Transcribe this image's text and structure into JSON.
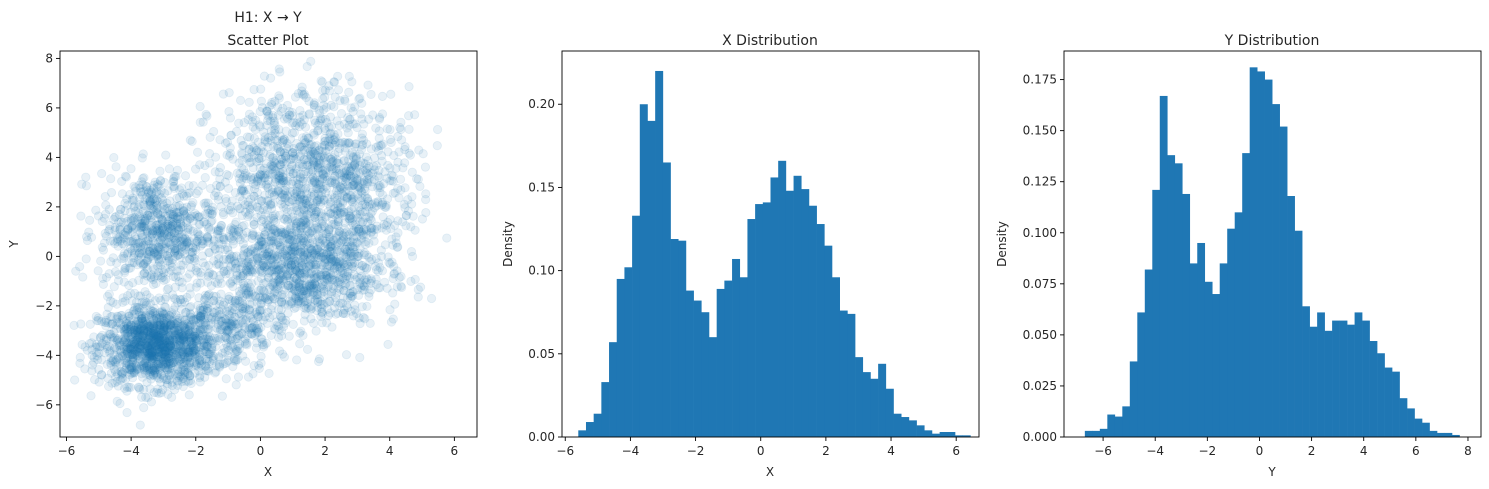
{
  "chart_data": [
    {
      "type": "scatter",
      "title": "H1: X → Y",
      "subtitle": "Scatter Plot",
      "xlabel": "X",
      "ylabel": "Y",
      "xlim": [
        -6.2,
        6.7
      ],
      "ylim": [
        -7.3,
        8.3
      ],
      "xticks": [
        -6,
        -4,
        -2,
        0,
        2,
        4,
        6
      ],
      "yticks": [
        -6,
        -4,
        -2,
        0,
        2,
        4,
        6,
        8
      ],
      "grid": false,
      "color": "#1f77b4",
      "alpha": 0.1,
      "clusters": [
        {
          "center": [
            -3.2,
            -3.6
          ],
          "spread": [
            0.9,
            0.8
          ],
          "count": 1300
        },
        {
          "center": [
            -3.2,
            1.0
          ],
          "spread": [
            0.9,
            1.2
          ],
          "count": 700
        },
        {
          "center": [
            1.0,
            -0.5
          ],
          "spread": [
            1.3,
            1.2
          ],
          "count": 1000
        },
        {
          "center": [
            1.3,
            3.5
          ],
          "spread": [
            1.4,
            1.6
          ],
          "count": 900
        },
        {
          "center": [
            -1.0,
            -3.0
          ],
          "spread": [
            0.8,
            0.8
          ],
          "count": 250
        },
        {
          "center": [
            3.0,
            2.0
          ],
          "spread": [
            1.0,
            1.8
          ],
          "count": 350
        }
      ]
    },
    {
      "type": "bar",
      "title": "X Distribution",
      "xlabel": "X",
      "ylabel": "Density",
      "xlim": [
        -6.1,
        6.7
      ],
      "ylim": [
        0,
        0.232
      ],
      "xticks": [
        -6,
        -4,
        -2,
        0,
        2,
        4,
        6
      ],
      "yticks": [
        0.0,
        0.05,
        0.1,
        0.15,
        0.2
      ],
      "ytick_labels": [
        "0.00",
        "0.05",
        "0.10",
        "0.15",
        "0.20"
      ],
      "grid": false,
      "color": "#1f77b4",
      "bin_start": -5.6,
      "bin_width": 0.236,
      "values": [
        0.004,
        0.009,
        0.014,
        0.033,
        0.057,
        0.095,
        0.102,
        0.133,
        0.2,
        0.19,
        0.22,
        0.165,
        0.119,
        0.118,
        0.088,
        0.082,
        0.075,
        0.06,
        0.089,
        0.094,
        0.107,
        0.096,
        0.131,
        0.14,
        0.141,
        0.156,
        0.166,
        0.148,
        0.157,
        0.149,
        0.139,
        0.128,
        0.115,
        0.096,
        0.076,
        0.074,
        0.048,
        0.039,
        0.035,
        0.044,
        0.029,
        0.014,
        0.012,
        0.01,
        0.007,
        0.004,
        0.002,
        0.003,
        0.003,
        0.001,
        0.001
      ]
    },
    {
      "type": "bar",
      "title": "Y Distribution",
      "xlabel": "Y",
      "ylabel": "Density",
      "xlim": [
        -7.5,
        8.5
      ],
      "ylim": [
        0,
        0.189
      ],
      "xticks": [
        -6,
        -4,
        -2,
        0,
        2,
        4,
        6,
        8
      ],
      "yticks": [
        0.0,
        0.025,
        0.05,
        0.075,
        0.1,
        0.125,
        0.15,
        0.175
      ],
      "ytick_labels": [
        "0.000",
        "0.025",
        "0.050",
        "0.075",
        "0.100",
        "0.125",
        "0.150",
        "0.175"
      ],
      "grid": false,
      "color": "#1f77b4",
      "bin_start": -6.7,
      "bin_width": 0.2875,
      "values": [
        0.003,
        0.003,
        0.004,
        0.011,
        0.01,
        0.015,
        0.037,
        0.061,
        0.082,
        0.121,
        0.167,
        0.138,
        0.134,
        0.119,
        0.085,
        0.095,
        0.076,
        0.07,
        0.085,
        0.102,
        0.11,
        0.139,
        0.181,
        0.179,
        0.175,
        0.163,
        0.152,
        0.118,
        0.101,
        0.064,
        0.054,
        0.061,
        0.052,
        0.057,
        0.057,
        0.055,
        0.061,
        0.057,
        0.047,
        0.041,
        0.034,
        0.032,
        0.019,
        0.014,
        0.009,
        0.007,
        0.003,
        0.002,
        0.002,
        0.001
      ]
    }
  ]
}
